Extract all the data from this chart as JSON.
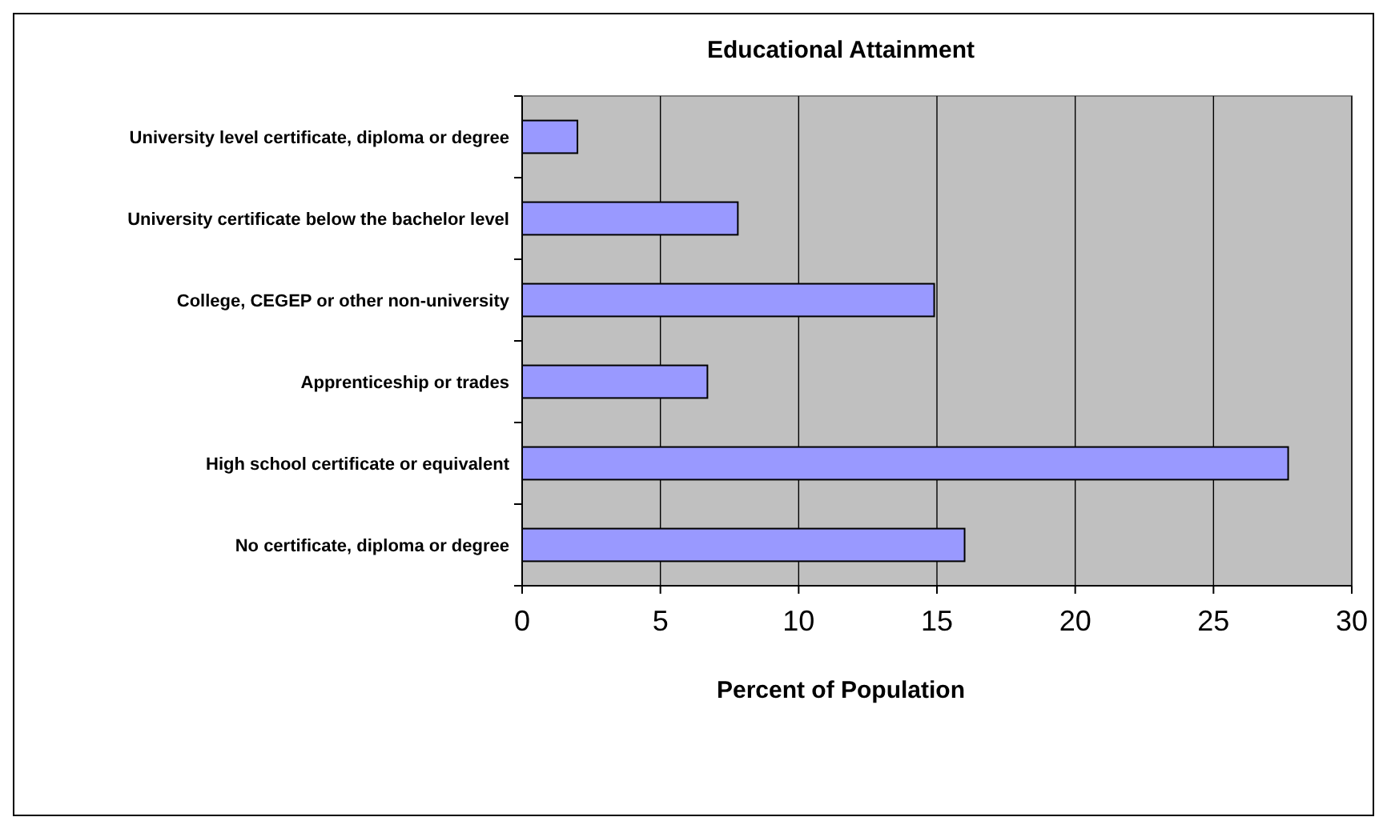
{
  "chart_data": {
    "type": "bar",
    "orientation": "horizontal",
    "title": "Educational Attainment",
    "xlabel": "Percent of Population",
    "categories": [
      "University level certificate, diploma or degree",
      "University certificate below the bachelor level",
      "College, CEGEP or other non-university",
      "Apprenticeship or trades",
      "High school certificate or equivalent",
      "No certificate, diploma or degree"
    ],
    "values": [
      2.0,
      7.8,
      14.9,
      6.7,
      27.7,
      16.0
    ],
    "color": "#9999ff",
    "xlim": [
      0,
      30
    ],
    "xticks": [
      0,
      5,
      10,
      15,
      20,
      25,
      30
    ],
    "grid": "x"
  }
}
